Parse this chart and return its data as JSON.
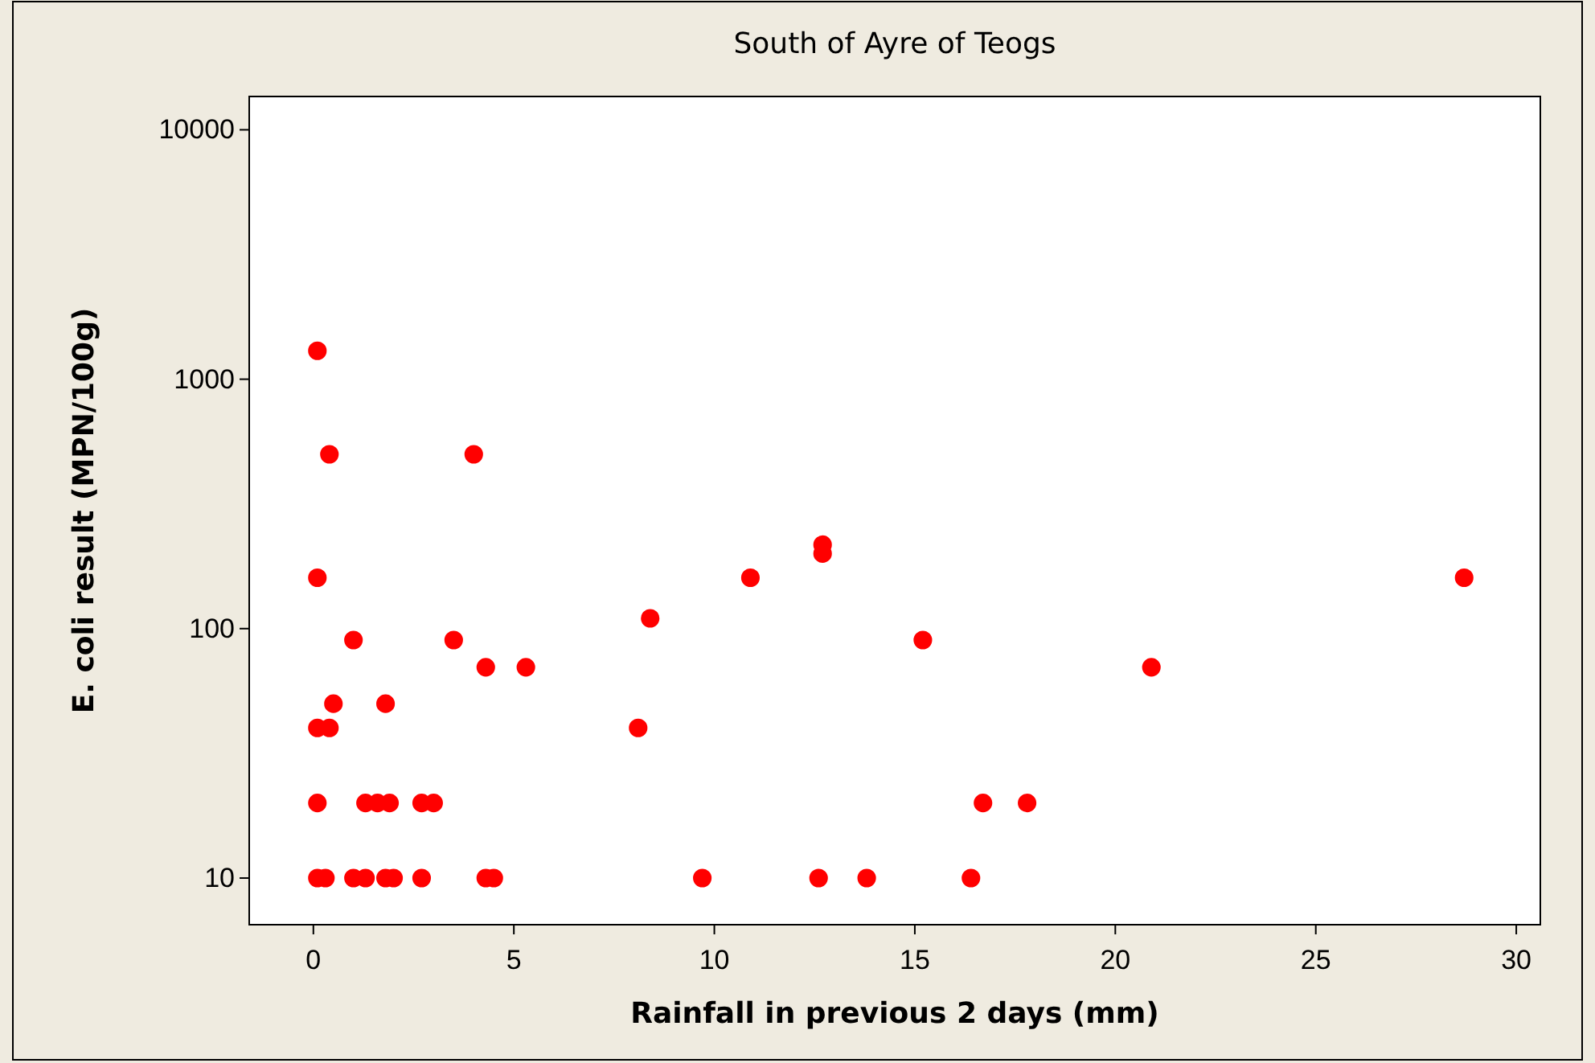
{
  "chart_data": {
    "type": "scatter",
    "title": "South of Ayre of Teogs",
    "xlabel": "Rainfall in previous 2 days (mm)",
    "ylabel": "E. coli result (MPN/100g)",
    "log": "y",
    "marker": "circle",
    "grid": false,
    "xlim": [
      -1.6,
      30.6
    ],
    "xticks": [
      0,
      5,
      10,
      15,
      20,
      25,
      30
    ],
    "ylim": [
      6.5,
      13600
    ],
    "yticks": [
      10,
      100,
      1000,
      10000
    ],
    "series": [
      {
        "color": "#ff0000",
        "x": [
          0.1,
          0.4,
          4.0,
          0.1,
          1.0,
          3.5,
          4.3,
          5.3,
          0.5,
          1.8,
          0.1,
          0.4,
          0.1,
          1.3,
          1.6,
          1.9,
          2.7,
          3.0,
          0.1,
          0.3,
          1.0,
          1.3,
          1.8,
          2.0,
          2.7,
          4.3,
          4.5,
          12.7,
          12.7,
          10.9,
          8.4,
          15.2,
          8.1,
          16.7,
          17.8,
          9.7,
          12.6,
          13.8,
          16.4,
          20.9,
          28.7
        ],
        "values": [
          1300,
          500,
          500,
          160,
          90,
          90,
          70,
          70,
          50,
          50,
          40,
          40,
          20,
          20,
          20,
          20,
          20,
          20,
          10,
          10,
          10,
          10,
          10,
          10,
          10,
          10,
          10,
          217,
          200,
          160,
          110,
          90,
          40,
          20,
          20,
          10,
          10,
          10,
          10,
          70,
          160
        ]
      }
    ]
  }
}
